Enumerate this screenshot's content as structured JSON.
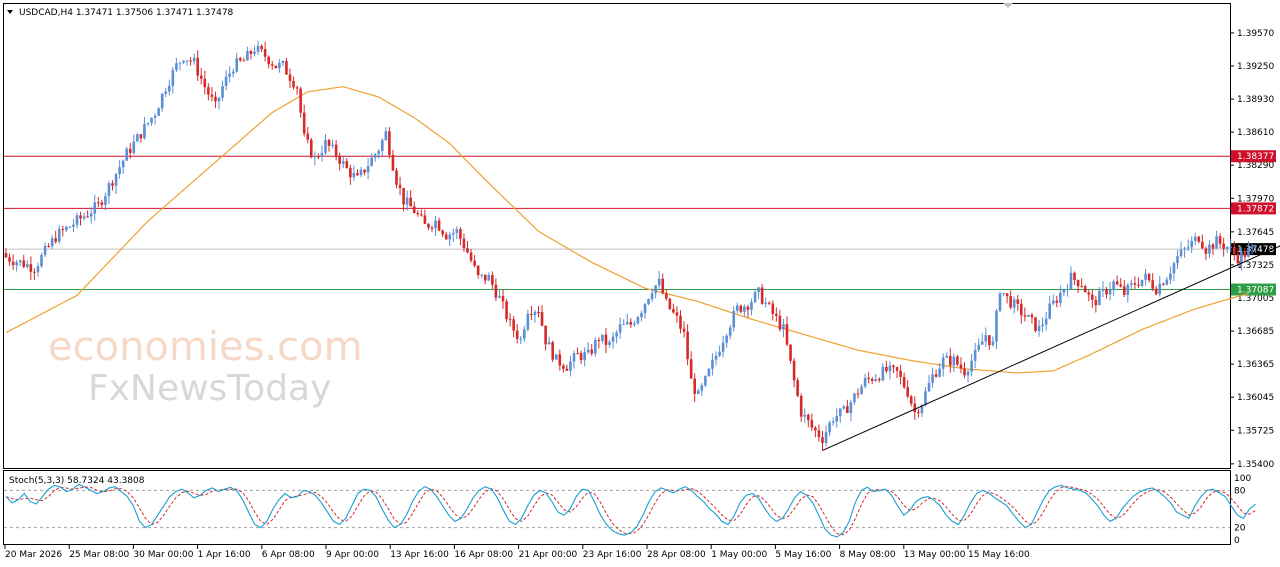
{
  "header": {
    "menu_icon": "triangle-down-icon",
    "symbol_text": "USDCAD,H4  1.37471 1.37506 1.37471 1.37478"
  },
  "watermark": {
    "line1": "economies.com",
    "line2": "FxNewsToday"
  },
  "colors": {
    "bull": "#5b8fd6",
    "bear": "#d42a2a",
    "ma": "#f0a030",
    "resistance": "#d0102a",
    "support": "#2e9e46",
    "trendline": "#000000",
    "stoch_main": "#1c9fd6",
    "stoch_signal": "#d42a2a"
  },
  "chart_data": [
    {
      "type": "candlestick",
      "title": "USDCAD,H4",
      "ohlc_current": {
        "open": 1.37471,
        "high": 1.37506,
        "low": 1.37471,
        "close": 1.37478
      },
      "y_ticks": [
        1.3957,
        1.3925,
        1.3893,
        1.3861,
        1.3829,
        1.3797,
        1.37645,
        1.37325,
        1.37005,
        1.36685,
        1.36365,
        1.36045,
        1.35725,
        1.354
      ],
      "y_tick_labels": [
        "1.39570",
        "1.39250",
        "1.38930",
        "1.38610",
        "1.38290",
        "1.37970",
        "1.37645",
        "1.37325",
        "1.37005",
        "1.36685",
        "1.36365",
        "1.36045",
        "1.35725",
        "1.35400"
      ],
      "ylim": [
        1.3536,
        1.3985
      ],
      "x_tick_labels": [
        "20 Mar 2026",
        "25 Mar 08:00",
        "30 Mar 00:00",
        "1 Apr 16:00",
        "6 Apr 08:00",
        "9 Apr 00:00",
        "13 Apr 16:00",
        "16 Apr 08:00",
        "21 Apr 00:00",
        "23 Apr 16:00",
        "28 Apr 08:00",
        "1 May 00:00",
        "5 May 16:00",
        "8 May 08:00",
        "13 May 00:00",
        "15 May 16:00"
      ],
      "horizontal_levels": [
        {
          "value": 1.38377,
          "label": "1.38377",
          "color": "#d0102a"
        },
        {
          "value": 1.37872,
          "label": "1.37872",
          "color": "#d0102a"
        },
        {
          "value": 1.37087,
          "label": "1.37087",
          "color": "#2e9e46"
        }
      ],
      "price_label": {
        "value": 1.37478,
        "label": "1.37478"
      },
      "price_path": [
        [
          0,
          1.374
        ],
        [
          8,
          1.373
        ],
        [
          14,
          1.376
        ],
        [
          20,
          1.3775
        ],
        [
          26,
          1.379
        ],
        [
          30,
          1.3815
        ],
        [
          34,
          1.384
        ],
        [
          38,
          1.386
        ],
        [
          42,
          1.388
        ],
        [
          45,
          1.3905
        ],
        [
          48,
          1.3925
        ],
        [
          50,
          1.3935
        ],
        [
          53,
          1.3928
        ],
        [
          56,
          1.3905
        ],
        [
          59,
          1.3885
        ],
        [
          61,
          1.3905
        ],
        [
          64,
          1.3925
        ],
        [
          67,
          1.393
        ],
        [
          70,
          1.3942
        ],
        [
          73,
          1.3935
        ],
        [
          76,
          1.3925
        ],
        [
          78,
          1.3925
        ],
        [
          82,
          1.3905
        ],
        [
          84,
          1.3855
        ],
        [
          87,
          1.3835
        ],
        [
          90,
          1.385
        ],
        [
          93,
          1.384
        ],
        [
          96,
          1.3825
        ],
        [
          99,
          1.3815
        ],
        [
          102,
          1.383
        ],
        [
          105,
          1.3845
        ],
        [
          107,
          1.386
        ],
        [
          110,
          1.3815
        ],
        [
          112,
          1.3795
        ],
        [
          115,
          1.3785
        ],
        [
          118,
          1.377
        ],
        [
          121,
          1.3775
        ],
        [
          124,
          1.3762
        ],
        [
          127,
          1.3765
        ],
        [
          130,
          1.3745
        ],
        [
          133,
          1.372
        ],
        [
          136,
          1.372
        ],
        [
          139,
          1.37
        ],
        [
          142,
          1.3675
        ],
        [
          145,
          1.366
        ],
        [
          147,
          1.369
        ],
        [
          150,
          1.369
        ],
        [
          152,
          1.366
        ],
        [
          155,
          1.364
        ],
        [
          158,
          1.3635
        ],
        [
          161,
          1.3645
        ],
        [
          164,
          1.3645
        ],
        [
          167,
          1.3662
        ],
        [
          170,
          1.3655
        ],
        [
          173,
          1.3672
        ],
        [
          176,
          1.3675
        ],
        [
          179,
          1.369
        ],
        [
          182,
          1.371
        ],
        [
          184,
          1.3715
        ],
        [
          186,
          1.3695
        ],
        [
          189,
          1.368
        ],
        [
          191,
          1.3665
        ],
        [
          193,
          1.362
        ],
        [
          195,
          1.3605
        ],
        [
          197,
          1.362
        ],
        [
          200,
          1.3645
        ],
        [
          203,
          1.367
        ],
        [
          206,
          1.369
        ],
        [
          209,
          1.3695
        ],
        [
          212,
          1.3705
        ],
        [
          215,
          1.369
        ],
        [
          217,
          1.368
        ],
        [
          219,
          1.367
        ],
        [
          222,
          1.362
        ],
        [
          224,
          1.359
        ],
        [
          227,
          1.3575
        ],
        [
          230,
          1.3565
        ],
        [
          233,
          1.3585
        ],
        [
          236,
          1.359
        ],
        [
          239,
          1.3605
        ],
        [
          242,
          1.362
        ],
        [
          245,
          1.3625
        ],
        [
          248,
          1.363
        ],
        [
          251,
          1.3628
        ],
        [
          254,
          1.361
        ],
        [
          256,
          1.359
        ],
        [
          258,
          1.36
        ],
        [
          261,
          1.3625
        ],
        [
          264,
          1.364
        ],
        [
          267,
          1.364
        ],
        [
          270,
          1.363
        ],
        [
          273,
          1.3645
        ],
        [
          276,
          1.3665
        ],
        [
          278,
          1.3655
        ],
        [
          280,
          1.371
        ],
        [
          282,
          1.37
        ],
        [
          285,
          1.369
        ],
        [
          288,
          1.368
        ],
        [
          291,
          1.367
        ],
        [
          294,
          1.369
        ],
        [
          297,
          1.3705
        ],
        [
          300,
          1.372
        ],
        [
          303,
          1.3715
        ],
        [
          306,
          1.3695
        ],
        [
          309,
          1.3705
        ],
        [
          312,
          1.3715
        ],
        [
          315,
          1.3705
        ],
        [
          318,
          1.3715
        ],
        [
          321,
          1.372
        ],
        [
          324,
          1.371
        ],
        [
          327,
          1.3722
        ],
        [
          330,
          1.374
        ],
        [
          333,
          1.375
        ],
        [
          336,
          1.376
        ],
        [
          338,
          1.3748
        ],
        [
          341,
          1.3755
        ],
        [
          344,
          1.375
        ],
        [
          347,
          1.374
        ],
        [
          350,
          1.3745
        ],
        [
          352,
          1.37478
        ]
      ],
      "moving_average": [
        [
          0,
          1.3667
        ],
        [
          20,
          1.3703
        ],
        [
          40,
          1.3775
        ],
        [
          60,
          1.3835
        ],
        [
          75,
          1.388
        ],
        [
          85,
          1.39
        ],
        [
          95,
          1.3905
        ],
        [
          105,
          1.3895
        ],
        [
          115,
          1.3875
        ],
        [
          125,
          1.385
        ],
        [
          135,
          1.3815
        ],
        [
          150,
          1.3765
        ],
        [
          165,
          1.3735
        ],
        [
          180,
          1.371
        ],
        [
          195,
          1.3697
        ],
        [
          210,
          1.368
        ],
        [
          225,
          1.3665
        ],
        [
          240,
          1.365
        ],
        [
          255,
          1.364
        ],
        [
          270,
          1.3632
        ],
        [
          285,
          1.3628
        ],
        [
          295,
          1.363
        ],
        [
          305,
          1.3645
        ],
        [
          320,
          1.367
        ],
        [
          335,
          1.369
        ],
        [
          350,
          1.3705
        ]
      ],
      "trendline": [
        [
          230,
          1.3553
        ],
        [
          372,
          1.3771
        ]
      ]
    },
    {
      "type": "line",
      "title": "Stoch(5,3,3) 58.7324 43.3808",
      "indicator": "Stoch(5,3,3)",
      "main_value": 58.7324,
      "signal_value": 43.3808,
      "levels": [
        80,
        20
      ],
      "y_tick_labels": [
        "100",
        "80",
        "20",
        "0"
      ],
      "ylim": [
        0,
        100
      ],
      "series_main": [
        70,
        60,
        65,
        75,
        62,
        58,
        70,
        82,
        88,
        85,
        78,
        82,
        90,
        85,
        80,
        75,
        78,
        84,
        86,
        78,
        70,
        55,
        30,
        20,
        25,
        40,
        55,
        70,
        78,
        82,
        76,
        68,
        72,
        80,
        84,
        78,
        82,
        85,
        80,
        65,
        45,
        25,
        20,
        30,
        50,
        65,
        75,
        68,
        70,
        80,
        78,
        72,
        60,
        45,
        30,
        25,
        35,
        55,
        75,
        82,
        80,
        70,
        50,
        32,
        20,
        25,
        40,
        62,
        78,
        86,
        82,
        70,
        55,
        40,
        30,
        35,
        50,
        68,
        80,
        86,
        82,
        68,
        48,
        30,
        25,
        35,
        55,
        72,
        80,
        76,
        62,
        45,
        40,
        50,
        70,
        82,
        80,
        62,
        40,
        25,
        15,
        10,
        8,
        12,
        22,
        40,
        62,
        78,
        84,
        80,
        76,
        82,
        86,
        80,
        70,
        62,
        50,
        42,
        30,
        25,
        38,
        60,
        72,
        75,
        68,
        52,
        38,
        30,
        35,
        50,
        68,
        78,
        72,
        60,
        40,
        18,
        8,
        5,
        12,
        30,
        60,
        80,
        85,
        78,
        80,
        82,
        72,
        55,
        40,
        48,
        62,
        68,
        70,
        64,
        55,
        40,
        30,
        25,
        40,
        60,
        75,
        80,
        76,
        68,
        62,
        55,
        42,
        30,
        20,
        25,
        45,
        65,
        80,
        86,
        88,
        84,
        82,
        80,
        76,
        66,
        55,
        40,
        30,
        35,
        50,
        62,
        72,
        78,
        82,
        84,
        78,
        70,
        60,
        45,
        40,
        35,
        55,
        70,
        80,
        82,
        76,
        70,
        55,
        40,
        35,
        50,
        58
      ]
    }
  ]
}
